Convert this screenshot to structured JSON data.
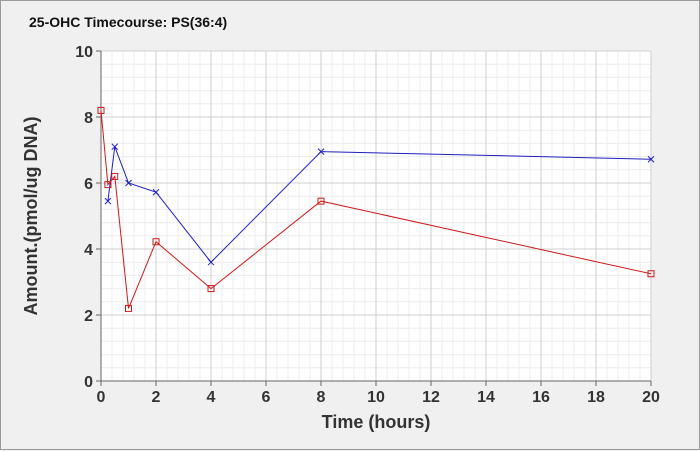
{
  "chart_data": {
    "type": "line",
    "title": "25-OHC Timecourse: PS(36:4)",
    "xlabel": "Time (hours)",
    "ylabel": "Amount.(pmol/ug DNA)",
    "xlim": [
      0,
      20
    ],
    "ylim": [
      0,
      10
    ],
    "x_ticks": [
      "0",
      "2",
      "4",
      "6",
      "8",
      "10",
      "12",
      "14",
      "16",
      "18",
      "20"
    ],
    "y_ticks": [
      "0",
      "2",
      "4",
      "6",
      "8",
      "10"
    ],
    "grid": true,
    "legend": "none",
    "series": [
      {
        "color": "#2020c0",
        "marker": "x",
        "x": [
          0.25,
          0.5,
          1,
          2,
          4,
          8,
          20
        ],
        "y": [
          5.45,
          7.1,
          6.0,
          5.72,
          3.6,
          6.95,
          6.72
        ]
      },
      {
        "color": "#cc1a1a",
        "marker": "square",
        "x": [
          0,
          0.25,
          0.5,
          1,
          2,
          4,
          8,
          20
        ],
        "y": [
          8.2,
          5.95,
          6.2,
          2.2,
          4.22,
          2.8,
          5.45,
          3.25
        ]
      }
    ]
  }
}
